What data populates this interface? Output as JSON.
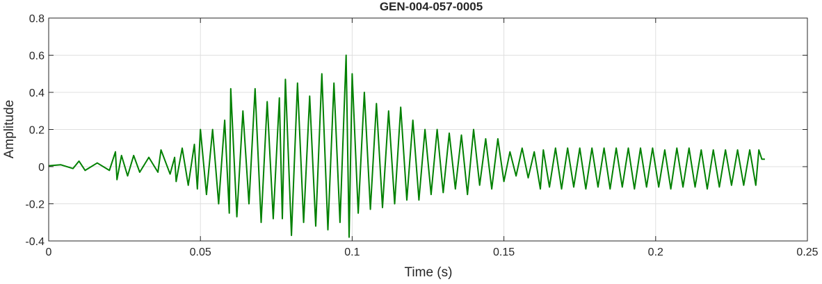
{
  "chart_data": {
    "type": "line",
    "title": "GEN-004-057-0005",
    "xlabel": "Time (s)",
    "ylabel": "Amplitude",
    "xlim": [
      0,
      0.25
    ],
    "ylim": [
      -0.4,
      0.8
    ],
    "xticks": [
      0,
      0.05,
      0.1,
      0.15,
      0.2,
      0.25
    ],
    "xtick_labels": [
      "0",
      "0.05",
      "0.1",
      "0.15",
      "0.2",
      "0.25"
    ],
    "yticks": [
      -0.4,
      -0.2,
      0,
      0.2,
      0.4,
      0.6,
      0.8
    ],
    "ytick_labels": [
      "-0.4",
      "-0.2",
      "0",
      "0.2",
      "0.4",
      "0.6",
      "0.8"
    ],
    "grid": true,
    "line_color": "#008000",
    "series": [
      {
        "x": [
          0,
          0.004,
          0.008,
          0.01,
          0.012,
          0.016,
          0.02,
          0.022,
          0.0225,
          0.024,
          0.026,
          0.028,
          0.03,
          0.033,
          0.036,
          0.037,
          0.04,
          0.0415,
          0.042,
          0.044,
          0.046,
          0.048,
          0.049,
          0.05,
          0.052,
          0.054,
          0.056,
          0.058,
          0.0595,
          0.06,
          0.062,
          0.064,
          0.066,
          0.068,
          0.07,
          0.072,
          0.074,
          0.076,
          0.077,
          0.078,
          0.08,
          0.082,
          0.084,
          0.086,
          0.088,
          0.09,
          0.092,
          0.094,
          0.096,
          0.098,
          0.099,
          0.1,
          0.102,
          0.104,
          0.106,
          0.108,
          0.11,
          0.112,
          0.114,
          0.116,
          0.118,
          0.12,
          0.122,
          0.124,
          0.126,
          0.128,
          0.13,
          0.132,
          0.134,
          0.136,
          0.138,
          0.14,
          0.142,
          0.144,
          0.146,
          0.148,
          0.15,
          0.152,
          0.154,
          0.156,
          0.158,
          0.16,
          0.162,
          0.163,
          0.165,
          0.167,
          0.169,
          0.171,
          0.173,
          0.175,
          0.177,
          0.179,
          0.181,
          0.183,
          0.185,
          0.187,
          0.189,
          0.191,
          0.193,
          0.195,
          0.197,
          0.199,
          0.201,
          0.203,
          0.205,
          0.207,
          0.209,
          0.211,
          0.213,
          0.215,
          0.217,
          0.219,
          0.221,
          0.223,
          0.225,
          0.227,
          0.229,
          0.231,
          0.233,
          0.234,
          0.235,
          0.236
        ],
        "y": [
          0.005,
          0.01,
          -0.01,
          0.03,
          -0.02,
          0.02,
          -0.02,
          0.08,
          -0.07,
          0.06,
          -0.05,
          0.06,
          -0.03,
          0.05,
          -0.03,
          0.09,
          -0.04,
          0.05,
          -0.08,
          0.1,
          -0.1,
          0.12,
          -0.12,
          0.2,
          -0.15,
          0.2,
          -0.2,
          0.25,
          -0.25,
          0.42,
          -0.27,
          0.3,
          -0.2,
          0.42,
          -0.3,
          0.35,
          -0.28,
          0.37,
          -0.28,
          0.47,
          -0.37,
          0.45,
          -0.3,
          0.38,
          -0.32,
          0.5,
          -0.34,
          0.45,
          -0.3,
          0.6,
          -0.38,
          0.5,
          -0.25,
          0.4,
          -0.23,
          0.34,
          -0.22,
          0.3,
          -0.2,
          0.32,
          -0.18,
          0.25,
          -0.18,
          0.2,
          -0.15,
          0.2,
          -0.14,
          0.18,
          -0.12,
          0.17,
          -0.15,
          0.2,
          -0.1,
          0.15,
          -0.12,
          0.15,
          -0.08,
          0.08,
          -0.05,
          0.1,
          -0.06,
          0.08,
          -0.12,
          0.09,
          -0.11,
          0.1,
          -0.12,
          0.1,
          -0.11,
          0.1,
          -0.12,
          0.1,
          -0.11,
          0.1,
          -0.12,
          0.1,
          -0.11,
          0.1,
          -0.12,
          0.1,
          -0.11,
          0.1,
          -0.11,
          0.09,
          -0.12,
          0.1,
          -0.11,
          0.1,
          -0.11,
          0.09,
          -0.12,
          0.09,
          -0.11,
          0.09,
          -0.1,
          0.09,
          -0.1,
          0.09,
          -0.1,
          0.09,
          0.04,
          0.04
        ]
      }
    ]
  }
}
